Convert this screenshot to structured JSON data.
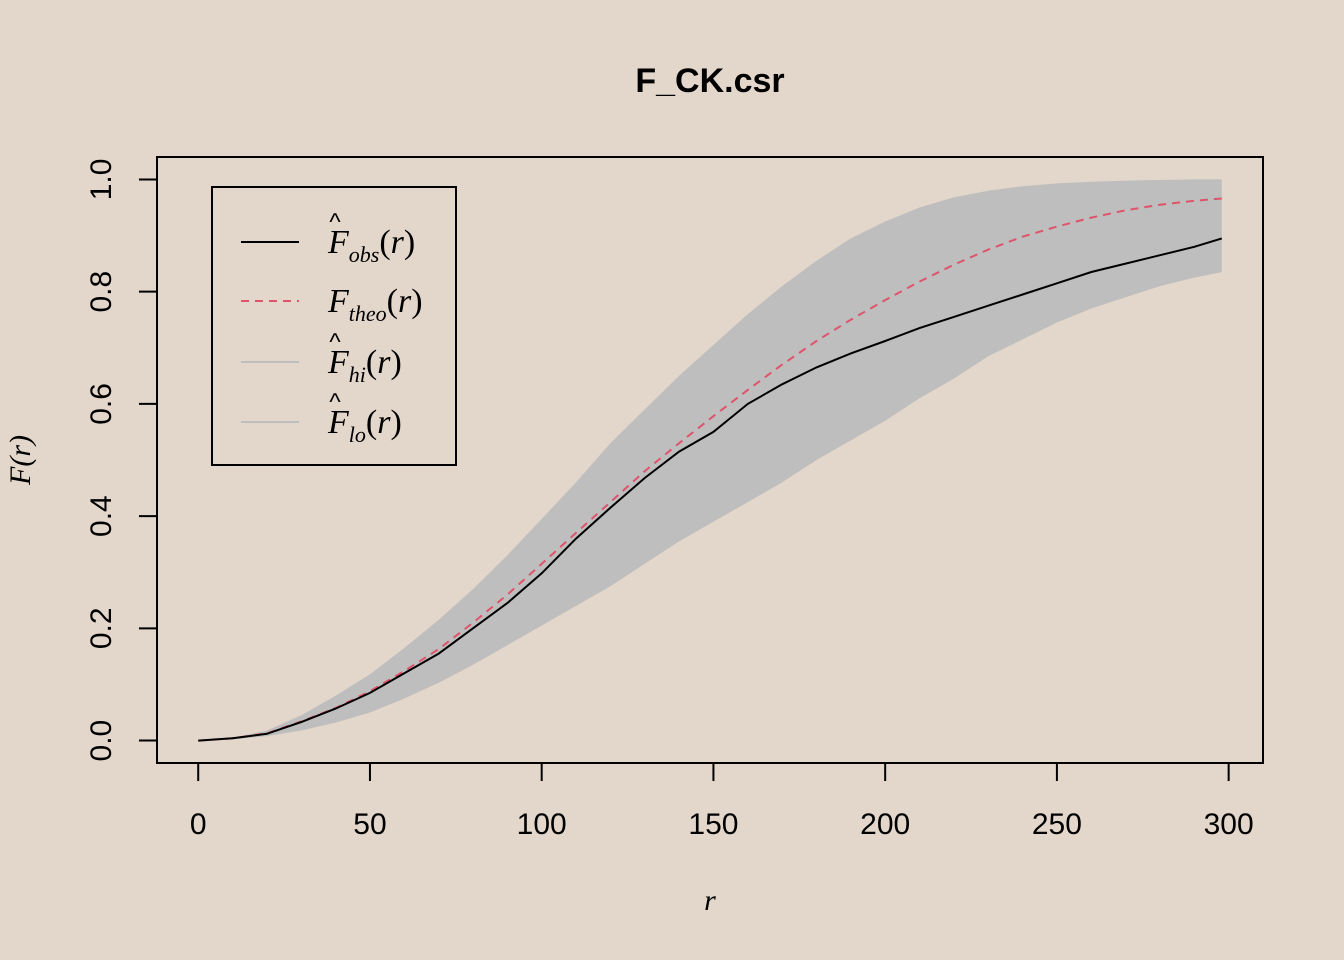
{
  "background": "#E3D6CA",
  "chart_data": {
    "type": "line",
    "title": "F_CK.csr",
    "xlabel": "r",
    "ylabel": "F(r)",
    "xlim": [
      -12,
      310
    ],
    "ylim": [
      -0.04,
      1.04
    ],
    "xticks": [
      0,
      50,
      100,
      150,
      200,
      250,
      300
    ],
    "xtick_labels": [
      "0",
      "50",
      "100",
      "150",
      "200",
      "250",
      "300"
    ],
    "yticks": [
      0,
      0.2,
      0.4,
      0.6,
      0.8,
      1.0
    ],
    "ytick_labels": [
      "0.0",
      "0.2",
      "0.4",
      "0.6",
      "0.8",
      "1.0"
    ],
    "legend_position": "top-left",
    "x": [
      0,
      10,
      20,
      30,
      40,
      50,
      60,
      70,
      80,
      90,
      100,
      110,
      120,
      130,
      140,
      150,
      160,
      170,
      180,
      190,
      200,
      210,
      220,
      230,
      240,
      250,
      260,
      270,
      280,
      290,
      298
    ],
    "series": [
      {
        "key": "hi",
        "legend_base": "F",
        "legend_hat": true,
        "legend_sub": "hi",
        "color": "#BEBEBE",
        "style": "band-upper",
        "values": [
          0,
          0.005,
          0.018,
          0.045,
          0.08,
          0.118,
          0.165,
          0.215,
          0.27,
          0.33,
          0.395,
          0.46,
          0.53,
          0.59,
          0.65,
          0.705,
          0.76,
          0.81,
          0.855,
          0.895,
          0.925,
          0.95,
          0.968,
          0.98,
          0.988,
          0.993,
          0.996,
          0.998,
          0.999,
          1.0,
          1.0
        ]
      },
      {
        "key": "lo",
        "legend_base": "F",
        "legend_hat": true,
        "legend_sub": "lo",
        "color": "#BEBEBE",
        "style": "band-lower",
        "values": [
          0,
          0.002,
          0.008,
          0.018,
          0.032,
          0.05,
          0.075,
          0.103,
          0.135,
          0.17,
          0.205,
          0.24,
          0.275,
          0.315,
          0.355,
          0.39,
          0.425,
          0.46,
          0.5,
          0.535,
          0.57,
          0.61,
          0.645,
          0.685,
          0.715,
          0.745,
          0.77,
          0.79,
          0.81,
          0.825,
          0.835
        ]
      },
      {
        "key": "theo",
        "legend_base": "F",
        "legend_hat": false,
        "legend_sub": "theo",
        "color": "#DF536B",
        "style": "dashed",
        "values": [
          0,
          0.004,
          0.013,
          0.034,
          0.058,
          0.088,
          0.124,
          0.163,
          0.21,
          0.26,
          0.315,
          0.37,
          0.425,
          0.48,
          0.53,
          0.578,
          0.625,
          0.67,
          0.712,
          0.75,
          0.785,
          0.818,
          0.848,
          0.875,
          0.898,
          0.916,
          0.932,
          0.945,
          0.955,
          0.962,
          0.966
        ]
      },
      {
        "key": "obs",
        "legend_base": "F",
        "legend_hat": true,
        "legend_sub": "obs",
        "color": "#000000",
        "style": "solid",
        "values": [
          0,
          0.004,
          0.012,
          0.033,
          0.057,
          0.085,
          0.12,
          0.155,
          0.2,
          0.245,
          0.298,
          0.36,
          0.415,
          0.468,
          0.515,
          0.55,
          0.6,
          0.635,
          0.665,
          0.69,
          0.712,
          0.735,
          0.755,
          0.775,
          0.795,
          0.815,
          0.835,
          0.85,
          0.865,
          0.88,
          0.895
        ]
      }
    ],
    "legend_order": [
      "obs",
      "theo",
      "hi",
      "lo"
    ]
  }
}
